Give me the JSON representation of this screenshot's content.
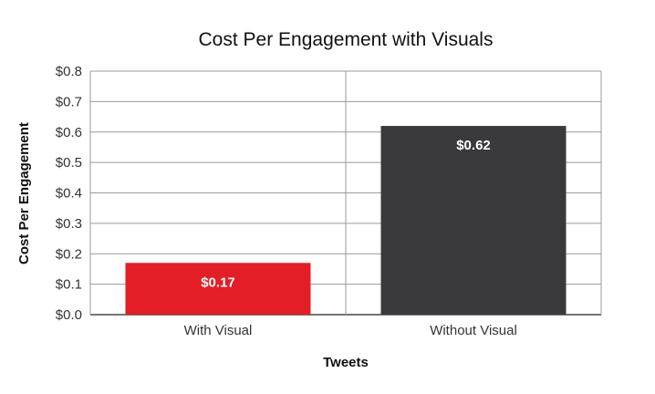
{
  "chart_data": {
    "type": "bar",
    "title": "Cost Per Engagement with Visuals",
    "xlabel": "Tweets",
    "ylabel": "Cost Per Engagement",
    "categories": [
      "With Visual",
      "Without Visual"
    ],
    "values": [
      0.17,
      0.62
    ],
    "data_labels": [
      "$0.17",
      "$0.62"
    ],
    "bar_colors": [
      "#e31e26",
      "#3a3a3c"
    ],
    "ylim": [
      0,
      0.8
    ],
    "yticks": [
      0,
      0.1,
      0.2,
      0.3,
      0.4,
      0.5,
      0.6,
      0.7,
      0.8
    ],
    "ytick_labels": [
      "$0.0",
      "$0.1",
      "$0.2",
      "$0.3",
      "$0.4",
      "$0.5",
      "$0.6",
      "$0.7",
      "$0.8"
    ],
    "grid": true,
    "legend": "none"
  }
}
